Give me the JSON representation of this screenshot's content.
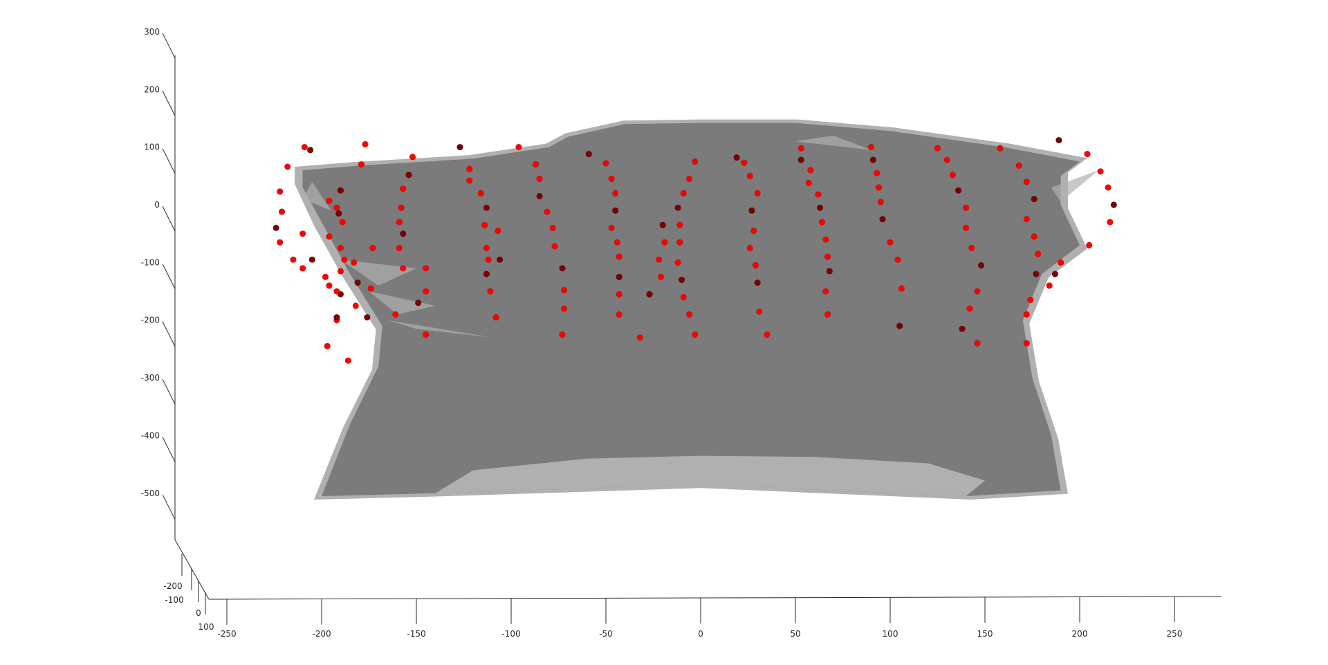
{
  "chart_data": {
    "type": "scatter",
    "subtype": "3d-scatter-with-surface",
    "title": "",
    "xlabel": "",
    "ylabel": "",
    "zlabel": "",
    "grid": false,
    "legend": "none",
    "colors": {
      "surface_front": "#7b7b7b",
      "surface_back": "#b0b0b0",
      "marker_front": "#ff0000",
      "marker_back": "#7f0000",
      "axis": "#262626"
    },
    "x_axis": {
      "ticks": [
        -250,
        -200,
        -150,
        -100,
        -50,
        0,
        50,
        100,
        150,
        200,
        250
      ],
      "tick_labels": [
        "-250",
        "-200",
        "-150",
        "-100",
        "-50",
        "0",
        "50",
        "100",
        "150",
        "200",
        "250"
      ],
      "range": [
        -275,
        272
      ]
    },
    "y_axis": {
      "ticks": [
        -200,
        -100,
        0,
        100
      ],
      "tick_labels": [
        "-200",
        "-100",
        "0",
        "100"
      ]
    },
    "z_axis": {
      "ticks": [
        300,
        200,
        100,
        0,
        -100,
        -200,
        -300,
        -400,
        -500
      ],
      "tick_labels": [
        "300",
        "200",
        "100",
        "0",
        "-100",
        "-200",
        "-300",
        "-400",
        "-500"
      ],
      "range": [
        -580,
        290
      ]
    },
    "surface_outline_xz": [
      [
        -210,
        60
      ],
      [
        -180,
        68
      ],
      [
        -120,
        80
      ],
      [
        -80,
        100
      ],
      [
        -70,
        118
      ],
      [
        -40,
        140
      ],
      [
        0,
        142
      ],
      [
        50,
        142
      ],
      [
        100,
        128
      ],
      [
        160,
        100
      ],
      [
        200,
        75
      ],
      [
        190,
        50
      ],
      [
        190,
        0
      ],
      [
        200,
        -70
      ],
      [
        180,
        -120
      ],
      [
        170,
        -200
      ],
      [
        175,
        -300
      ],
      [
        185,
        -400
      ],
      [
        190,
        -495
      ],
      [
        140,
        -505
      ],
      [
        0,
        -485
      ],
      [
        -140,
        -500
      ],
      [
        -200,
        -505
      ],
      [
        -185,
        -380
      ],
      [
        -170,
        -280
      ],
      [
        -168,
        -210
      ],
      [
        -185,
        -120
      ],
      [
        -200,
        -30
      ],
      [
        -210,
        30
      ]
    ],
    "series": [
      {
        "name": "",
        "points": [
          [
            -209,
            100
          ],
          [
            -206,
            95
          ],
          [
            -218,
            66
          ],
          [
            -222,
            23
          ],
          [
            -221,
            -12
          ],
          [
            -224,
            -40
          ],
          [
            -222,
            -65
          ],
          [
            -210,
            -50
          ],
          [
            -215,
            -95
          ],
          [
            -205,
            -95
          ],
          [
            -210,
            -110
          ],
          [
            -198,
            -125
          ],
          [
            -196,
            -140
          ],
          [
            -190,
            -155
          ],
          [
            -192,
            -200
          ],
          [
            -197,
            -245
          ],
          [
            -186,
            -270
          ],
          [
            -192,
            -195
          ],
          [
            -192,
            -150
          ],
          [
            -190,
            -115
          ],
          [
            -183,
            -100
          ],
          [
            -176,
            -195
          ],
          [
            -182,
            -175
          ],
          [
            -196,
            7
          ],
          [
            -192,
            -5
          ],
          [
            -191,
            -15
          ],
          [
            -196,
            -55
          ],
          [
            -190,
            -75
          ],
          [
            -188,
            -95
          ],
          [
            -181,
            -135
          ],
          [
            -174,
            -145
          ],
          [
            -173,
            -75
          ],
          [
            -189,
            -30
          ],
          [
            -190,
            25
          ],
          [
            -179,
            70
          ],
          [
            -177,
            105
          ],
          [
            -152,
            83
          ],
          [
            -154,
            52
          ],
          [
            -157,
            28
          ],
          [
            -158,
            -5
          ],
          [
            -159,
            -30
          ],
          [
            -157,
            -50
          ],
          [
            -159,
            -75
          ],
          [
            -157,
            -110
          ],
          [
            -145,
            -150
          ],
          [
            -149,
            -170
          ],
          [
            -145,
            -225
          ],
          [
            -161,
            -190
          ],
          [
            -145,
            -110
          ],
          [
            -127,
            100
          ],
          [
            -122,
            62
          ],
          [
            -122,
            42
          ],
          [
            -116,
            20
          ],
          [
            -113,
            -5
          ],
          [
            -114,
            -35
          ],
          [
            -113,
            -75
          ],
          [
            -112,
            -95
          ],
          [
            -113,
            -120
          ],
          [
            -111,
            -150
          ],
          [
            -108,
            -195
          ],
          [
            -107,
            -45
          ],
          [
            -106,
            -95
          ],
          [
            -96,
            100
          ],
          [
            -87,
            70
          ],
          [
            -85,
            45
          ],
          [
            -85,
            15
          ],
          [
            -81,
            -12
          ],
          [
            -78,
            -40
          ],
          [
            -77,
            -72
          ],
          [
            -73,
            -110
          ],
          [
            -72,
            -148
          ],
          [
            -72,
            -180
          ],
          [
            -73,
            -225
          ],
          [
            -59,
            88
          ],
          [
            -50,
            72
          ],
          [
            -47,
            45
          ],
          [
            -45,
            20
          ],
          [
            -45,
            -10
          ],
          [
            -47,
            -40
          ],
          [
            -44,
            -65
          ],
          [
            -43,
            -90
          ],
          [
            -43,
            -125
          ],
          [
            -43,
            -155
          ],
          [
            -43,
            -190
          ],
          [
            -32,
            -230
          ],
          [
            -27,
            -155
          ],
          [
            -21,
            -125
          ],
          [
            -22,
            -95
          ],
          [
            -19,
            -65
          ],
          [
            -20,
            -35
          ],
          [
            -3,
            75
          ],
          [
            -6,
            45
          ],
          [
            -9,
            20
          ],
          [
            -12,
            -5
          ],
          [
            -11,
            -35
          ],
          [
            -11,
            -65
          ],
          [
            -12,
            -100
          ],
          [
            -10,
            -130
          ],
          [
            -9,
            -160
          ],
          [
            -6,
            -190
          ],
          [
            -3,
            -225
          ],
          [
            19,
            82
          ],
          [
            23,
            73
          ],
          [
            26,
            50
          ],
          [
            30,
            20
          ],
          [
            27,
            -10
          ],
          [
            28,
            -45
          ],
          [
            26,
            -75
          ],
          [
            29,
            -105
          ],
          [
            30,
            -135
          ],
          [
            31,
            -185
          ],
          [
            35,
            -225
          ],
          [
            53,
            98
          ],
          [
            53,
            78
          ],
          [
            58,
            60
          ],
          [
            57,
            38
          ],
          [
            62,
            18
          ],
          [
            63,
            -5
          ],
          [
            64,
            -30
          ],
          [
            66,
            -60
          ],
          [
            67,
            -90
          ],
          [
            68,
            -115
          ],
          [
            66,
            -150
          ],
          [
            67,
            -190
          ],
          [
            90,
            100
          ],
          [
            91,
            78
          ],
          [
            93,
            55
          ],
          [
            94,
            30
          ],
          [
            95,
            5
          ],
          [
            96,
            -25
          ],
          [
            100,
            -65
          ],
          [
            104,
            -95
          ],
          [
            106,
            -145
          ],
          [
            105,
            -210
          ],
          [
            125,
            98
          ],
          [
            130,
            78
          ],
          [
            133,
            52
          ],
          [
            136,
            25
          ],
          [
            140,
            -5
          ],
          [
            140,
            -40
          ],
          [
            143,
            -75
          ],
          [
            148,
            -105
          ],
          [
            146,
            -150
          ],
          [
            146,
            -240
          ],
          [
            142,
            -180
          ],
          [
            138,
            -215
          ],
          [
            158,
            98
          ],
          [
            168,
            68
          ],
          [
            172,
            40
          ],
          [
            176,
            10
          ],
          [
            172,
            -25
          ],
          [
            176,
            -55
          ],
          [
            178,
            -85
          ],
          [
            177,
            -120
          ],
          [
            174,
            -165
          ],
          [
            172,
            -190
          ],
          [
            172,
            -240
          ],
          [
            189,
            112
          ],
          [
            204,
            88
          ],
          [
            211,
            58
          ],
          [
            215,
            30
          ],
          [
            218,
            0
          ],
          [
            216,
            -30
          ],
          [
            205,
            -70
          ],
          [
            190,
            -100
          ],
          [
            187,
            -120
          ],
          [
            184,
            -140
          ]
        ]
      }
    ]
  }
}
